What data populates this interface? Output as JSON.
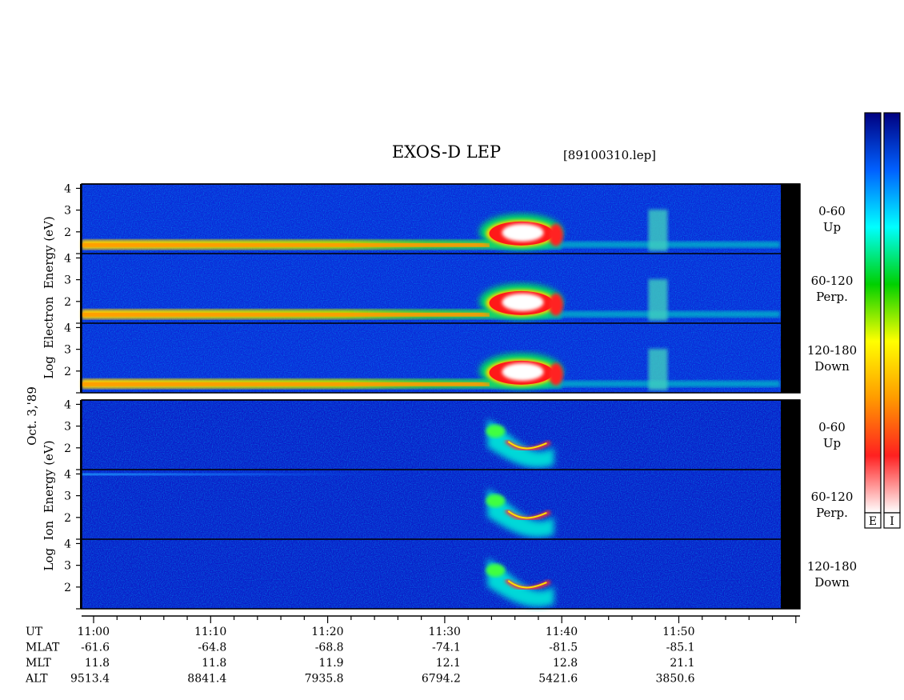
{
  "chart_data": {
    "type": "heatmap",
    "title": "EXOS-D LEP",
    "file_label": "[89100310.lep]",
    "date_label": "Oct. 3,'89",
    "x": {
      "start": "11:00",
      "tick_labels": [
        "11:00",
        "11:10",
        "11:20",
        "11:30",
        "11:40",
        "11:50"
      ],
      "minor_tick_minutes": 2
    },
    "groups": [
      {
        "name": "electron",
        "ylabel": "Log  Electron  Energy (eV)",
        "panels": [
          {
            "angle": "0-60",
            "direction": "Up"
          },
          {
            "angle": "60-120",
            "direction": "Perp."
          },
          {
            "angle": "120-180",
            "direction": "Down"
          }
        ]
      },
      {
        "name": "ion",
        "ylabel": "Log  Ion  Energy (eV)",
        "panels": [
          {
            "angle": "0-60",
            "direction": "Up"
          },
          {
            "angle": "60-120",
            "direction": "Perp."
          },
          {
            "angle": "120-180",
            "direction": "Down"
          }
        ]
      }
    ],
    "ylim": [
      1,
      4.2
    ],
    "yticks": [
      "4",
      "3",
      "2"
    ],
    "ephemeris": {
      "rows": [
        {
          "label": "UT",
          "values": [
            "11:00",
            "11:10",
            "11:20",
            "11:30",
            "11:40",
            "11:50"
          ]
        },
        {
          "label": "MLAT",
          "values": [
            "-61.6",
            "-64.8",
            "-68.8",
            "-74.1",
            "-81.5",
            "-85.1"
          ]
        },
        {
          "label": "MLT",
          "values": [
            "11.8",
            "11.8",
            "11.9",
            "12.1",
            "12.8",
            "21.1"
          ]
        },
        {
          "label": "ALT",
          "values": [
            "9513.4",
            "8841.4",
            "7935.8",
            "6794.2",
            "5421.6",
            "3850.6"
          ]
        }
      ]
    },
    "colorbars": [
      {
        "label": "E",
        "stops": [
          "#ffffff",
          "#ff2020",
          "#ff9a00",
          "#ffff00",
          "#00d000",
          "#00ffff",
          "#0060ff",
          "#000080"
        ]
      },
      {
        "label": "I",
        "stops": [
          "#ffffff",
          "#ff2020",
          "#ff9a00",
          "#ffff00",
          "#00d000",
          "#00ffff",
          "#0060ff",
          "#000080"
        ]
      }
    ]
  }
}
